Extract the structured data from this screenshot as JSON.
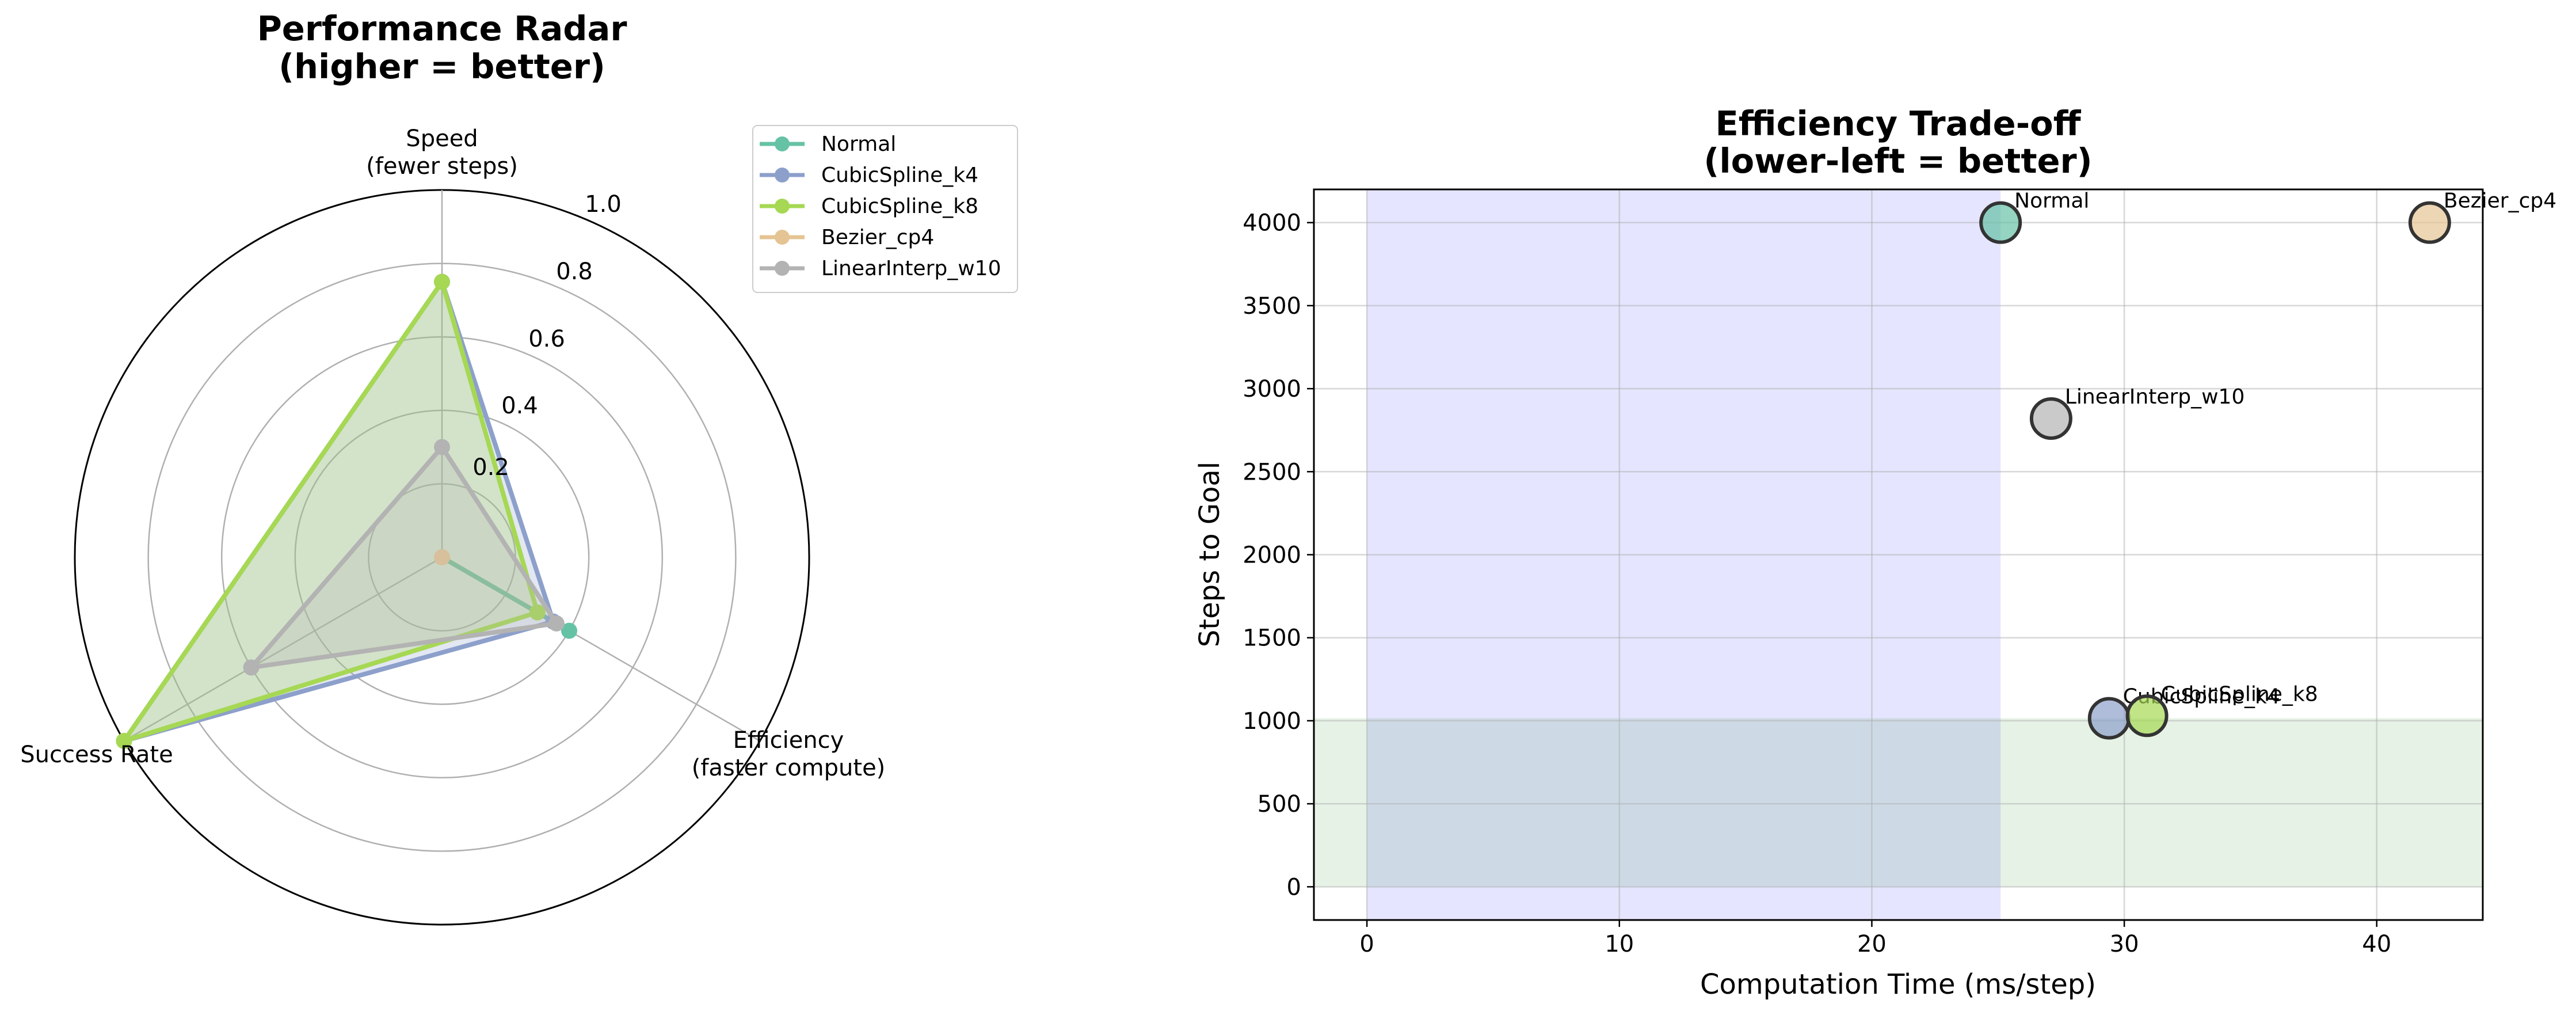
{
  "chart_data": [
    {
      "type": "radar",
      "title_line1": "Performance Radar",
      "title_line2": "(higher = better)",
      "axes": [
        {
          "line1": "Speed",
          "line2": "(fewer steps)"
        },
        {
          "line1": "Efficiency",
          "line2": "(faster compute)"
        },
        {
          "line1": "Success Rate",
          "line2": ""
        }
      ],
      "r_ticks": [
        "0.2",
        "0.4",
        "0.6",
        "0.8",
        "1.0"
      ],
      "r_lim": [
        0,
        1.0
      ],
      "legend_position": "top-right",
      "series": [
        {
          "name": "Normal",
          "color": "#66c2a5",
          "values": [
            0.0,
            0.4,
            0.0
          ]
        },
        {
          "name": "CubicSpline_k4",
          "color": "#8da0cb",
          "values": [
            0.75,
            0.35,
            1.0
          ]
        },
        {
          "name": "CubicSpline_k8",
          "color": "#a6d854",
          "values": [
            0.75,
            0.3,
            1.0
          ]
        },
        {
          "name": "Bezier_cp4",
          "color": "#e5c494",
          "values": [
            0.0,
            0.0,
            0.0
          ]
        },
        {
          "name": "LinearInterp_w10",
          "color": "#b3b3b3",
          "values": [
            0.3,
            0.36,
            0.6
          ]
        }
      ]
    },
    {
      "type": "scatter",
      "title_line1": "Efficiency Trade-off",
      "title_line2": "(lower-left = better)",
      "xlabel": "Computation Time (ms/step)",
      "ylabel": "Steps to Goal",
      "xlim": [
        -2.1,
        44.2
      ],
      "ylim": [
        -200,
        4200
      ],
      "x_ticks": [
        0,
        10,
        20,
        30,
        40
      ],
      "y_ticks": [
        0,
        500,
        1000,
        1500,
        2000,
        2500,
        3000,
        3500,
        4000
      ],
      "grid": true,
      "regions": [
        {
          "axis": "x",
          "from": 0,
          "to": 25.1,
          "color": "#0000ff",
          "opacity": 0.1
        },
        {
          "axis": "y",
          "from": 0,
          "to": 1015,
          "color": "#008000",
          "opacity": 0.1
        }
      ],
      "points": [
        {
          "name": "Normal",
          "x": 25.1,
          "y": 4000,
          "color": "#66c2a5"
        },
        {
          "name": "Bezier_cp4",
          "x": 42.1,
          "y": 4000,
          "color": "#e5c494"
        },
        {
          "name": "LinearInterp_w10",
          "x": 27.1,
          "y": 2820,
          "color": "#b3b3b3"
        },
        {
          "name": "CubicSpline_k4",
          "x": 29.4,
          "y": 1015,
          "color": "#8da0cb"
        },
        {
          "name": "CubicSpline_k8",
          "x": 30.9,
          "y": 1030,
          "color": "#a6d854"
        }
      ]
    }
  ]
}
